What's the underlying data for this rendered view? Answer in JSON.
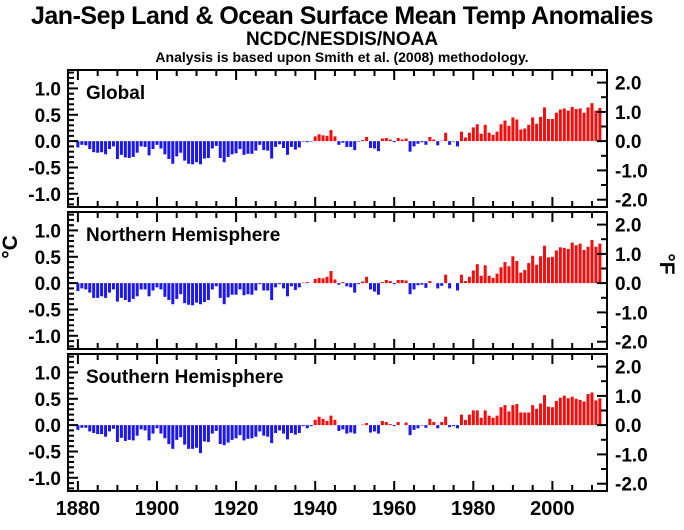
{
  "header": {
    "title": "Jan-Sep Land & Ocean Surface Mean Temp Anomalies",
    "subtitle": "NCDC/NESDIS/NOAA",
    "note": "Analysis is based upon Smith et al. (2008) methodology."
  },
  "colors": {
    "positive_bar": "#f50d0d",
    "negative_bar": "#1c16f0",
    "axis": "#000000",
    "background": "#ffffff",
    "text": "#000000"
  },
  "chart_data": {
    "type": "bar",
    "title": "Jan-Sep Land & Ocean Surface Mean Temp Anomalies",
    "subtitle": "NCDC/NESDIS/NOAA",
    "annotation": "Analysis is based upon Smith et al. (2008) methodology.",
    "ylabel_left": "°C",
    "ylabel_right": "°F",
    "xlabel": "",
    "grid": false,
    "legend": "none",
    "year_start": 1880,
    "year_end": 2012,
    "xlim": [
      1877.5,
      2013.8
    ],
    "ylim_c": [
      -1.25,
      1.35
    ],
    "yticks_c": [
      1.0,
      0.5,
      0.0,
      -0.5,
      -1.0
    ],
    "yticks_f": [
      2.0,
      1.0,
      0.0,
      -1.0,
      -2.0
    ],
    "xticks": [
      1880,
      1900,
      1920,
      1940,
      1960,
      1980,
      2000
    ],
    "x_minor_step_years": 5,
    "y_minor_step_c": 0.1,
    "panels": [
      {
        "label": "Global",
        "values": [
          -0.12,
          -0.07,
          -0.08,
          -0.15,
          -0.21,
          -0.22,
          -0.21,
          -0.25,
          -0.15,
          -0.1,
          -0.34,
          -0.26,
          -0.31,
          -0.32,
          -0.3,
          -0.22,
          -0.1,
          -0.11,
          -0.27,
          -0.15,
          -0.07,
          -0.14,
          -0.25,
          -0.34,
          -0.43,
          -0.29,
          -0.22,
          -0.37,
          -0.43,
          -0.44,
          -0.4,
          -0.44,
          -0.33,
          -0.32,
          -0.14,
          -0.09,
          -0.32,
          -0.4,
          -0.3,
          -0.25,
          -0.23,
          -0.15,
          -0.26,
          -0.24,
          -0.24,
          -0.18,
          -0.07,
          -0.17,
          -0.18,
          -0.33,
          -0.11,
          -0.06,
          -0.13,
          -0.26,
          -0.11,
          -0.16,
          -0.12,
          -0.01,
          -0.02,
          -0.01,
          0.09,
          0.13,
          0.11,
          0.1,
          0.21,
          0.09,
          -0.07,
          -0.03,
          -0.11,
          -0.11,
          -0.17,
          -0.01,
          0.02,
          0.08,
          -0.13,
          -0.14,
          -0.19,
          0.05,
          0.06,
          0.03,
          -0.02,
          0.06,
          0.03,
          0.05,
          -0.2,
          -0.1,
          -0.05,
          -0.02,
          -0.07,
          0.08,
          0.03,
          -0.08,
          0.01,
          0.16,
          -0.07,
          -0.01,
          -0.1,
          0.18,
          0.07,
          0.16,
          0.26,
          0.32,
          0.14,
          0.31,
          0.16,
          0.12,
          0.18,
          0.32,
          0.39,
          0.29,
          0.45,
          0.41,
          0.22,
          0.24,
          0.31,
          0.45,
          0.33,
          0.46,
          0.64,
          0.42,
          0.42,
          0.54,
          0.6,
          0.62,
          0.58,
          0.65,
          0.61,
          0.62,
          0.54,
          0.64,
          0.72,
          0.58,
          0.63
        ]
      },
      {
        "label": "Northern Hemisphere",
        "values": [
          -0.15,
          -0.1,
          -0.12,
          -0.18,
          -0.28,
          -0.28,
          -0.25,
          -0.28,
          -0.18,
          -0.12,
          -0.35,
          -0.28,
          -0.32,
          -0.36,
          -0.3,
          -0.25,
          -0.12,
          -0.12,
          -0.25,
          -0.14,
          -0.08,
          -0.12,
          -0.26,
          -0.32,
          -0.4,
          -0.3,
          -0.21,
          -0.38,
          -0.41,
          -0.42,
          -0.37,
          -0.4,
          -0.36,
          -0.32,
          -0.12,
          -0.06,
          -0.28,
          -0.4,
          -0.27,
          -0.22,
          -0.22,
          -0.12,
          -0.23,
          -0.21,
          -0.22,
          -0.14,
          -0.02,
          -0.14,
          -0.14,
          -0.32,
          -0.08,
          -0.02,
          -0.1,
          -0.25,
          -0.06,
          -0.13,
          -0.08,
          0.01,
          0.02,
          0.0,
          0.08,
          0.1,
          0.09,
          0.12,
          0.23,
          0.07,
          -0.03,
          0.02,
          -0.06,
          -0.08,
          -0.18,
          -0.02,
          0.03,
          0.12,
          -0.12,
          -0.16,
          -0.22,
          0.02,
          0.06,
          0.04,
          -0.02,
          0.06,
          0.06,
          0.05,
          -0.21,
          -0.12,
          -0.04,
          -0.03,
          -0.09,
          0.04,
          0.0,
          -0.1,
          -0.05,
          0.16,
          -0.1,
          0.0,
          -0.14,
          0.16,
          0.04,
          0.12,
          0.24,
          0.36,
          0.14,
          0.34,
          0.14,
          0.1,
          0.18,
          0.3,
          0.4,
          0.32,
          0.51,
          0.42,
          0.2,
          0.25,
          0.38,
          0.52,
          0.35,
          0.51,
          0.71,
          0.49,
          0.5,
          0.62,
          0.68,
          0.67,
          0.65,
          0.77,
          0.72,
          0.75,
          0.63,
          0.69,
          0.82,
          0.69,
          0.75
        ]
      },
      {
        "label": "Southern Hemisphere",
        "values": [
          -0.09,
          -0.05,
          -0.05,
          -0.12,
          -0.15,
          -0.17,
          -0.17,
          -0.22,
          -0.12,
          -0.07,
          -0.32,
          -0.24,
          -0.3,
          -0.28,
          -0.29,
          -0.2,
          -0.08,
          -0.1,
          -0.29,
          -0.16,
          -0.06,
          -0.16,
          -0.25,
          -0.36,
          -0.45,
          -0.28,
          -0.23,
          -0.37,
          -0.45,
          -0.45,
          -0.43,
          -0.53,
          -0.31,
          -0.32,
          -0.16,
          -0.11,
          -0.36,
          -0.38,
          -0.33,
          -0.28,
          -0.25,
          -0.19,
          -0.29,
          -0.26,
          -0.25,
          -0.22,
          -0.12,
          -0.2,
          -0.22,
          -0.34,
          -0.15,
          -0.1,
          -0.16,
          -0.27,
          -0.15,
          -0.18,
          -0.15,
          -0.02,
          -0.06,
          -0.02,
          0.1,
          0.16,
          0.12,
          0.08,
          0.18,
          0.1,
          -0.11,
          -0.08,
          -0.16,
          -0.14,
          -0.16,
          0.0,
          0.01,
          0.04,
          -0.14,
          -0.12,
          -0.16,
          0.08,
          0.06,
          0.02,
          -0.02,
          0.06,
          0.0,
          0.05,
          -0.19,
          -0.09,
          -0.06,
          -0.01,
          -0.05,
          0.12,
          0.06,
          -0.06,
          0.06,
          0.16,
          -0.04,
          -0.02,
          -0.06,
          0.2,
          0.1,
          0.2,
          0.28,
          0.28,
          0.14,
          0.28,
          0.18,
          0.14,
          0.18,
          0.34,
          0.38,
          0.26,
          0.38,
          0.4,
          0.24,
          0.24,
          0.24,
          0.38,
          0.31,
          0.41,
          0.57,
          0.35,
          0.34,
          0.46,
          0.52,
          0.56,
          0.51,
          0.54,
          0.5,
          0.48,
          0.45,
          0.59,
          0.62,
          0.47,
          0.51
        ]
      }
    ]
  }
}
